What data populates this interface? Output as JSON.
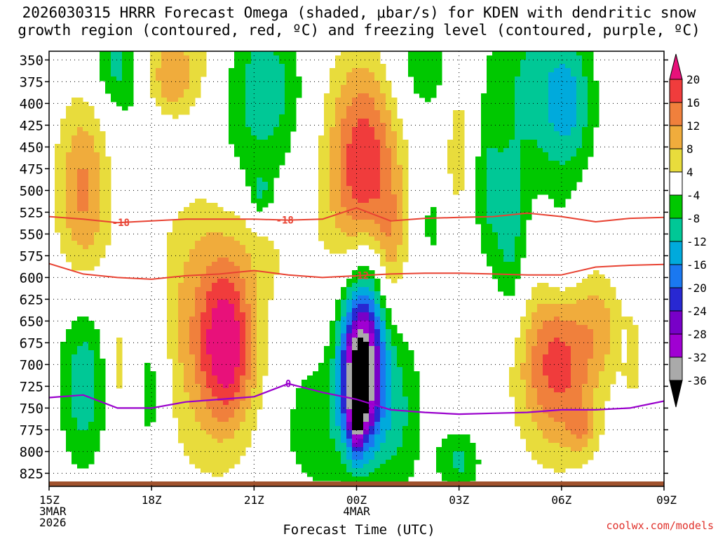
{
  "title": "2026030315 HRRR Forecast Omega (shaded, μbar/s) for KDEN with dendritic snow\ngrowth region (contoured, red, ºC) and freezing level (contoured, purple, ºC)",
  "credit": "coolwx.com/models",
  "chart_data": {
    "type": "heatmap",
    "title": "2026030315 HRRR Forecast Omega (shaded, μbar/s) for KDEN with dendritic snow growth region (contoured, red, ºC) and freezing level (contoured, purple, ºC)",
    "xlabel": "Forecast Time (UTC)",
    "ylabel": "Pressure (hPa)",
    "xlim": [
      0,
      18
    ],
    "ylim": [
      840,
      340
    ],
    "grid": true,
    "x_ticks": [
      {
        "x": 0,
        "lines": [
          "15Z",
          "3MAR",
          "2026"
        ]
      },
      {
        "x": 3,
        "lines": [
          "18Z"
        ]
      },
      {
        "x": 6,
        "lines": [
          "21Z"
        ]
      },
      {
        "x": 9,
        "lines": [
          "00Z",
          "4MAR"
        ]
      },
      {
        "x": 12,
        "lines": [
          "03Z"
        ]
      },
      {
        "x": 15,
        "lines": [
          "06Z"
        ]
      },
      {
        "x": 18,
        "lines": [
          "09Z"
        ]
      }
    ],
    "y_ticks": [
      350,
      375,
      400,
      425,
      450,
      475,
      500,
      525,
      550,
      575,
      600,
      625,
      650,
      675,
      700,
      725,
      750,
      775,
      800,
      825
    ],
    "colorbar": {
      "labels": [
        "20",
        "16",
        "12",
        "8",
        "4",
        "-4",
        "-8",
        "-12",
        "-16",
        "-20",
        "-24",
        "-28",
        "-32",
        "-36"
      ],
      "colors": [
        "#e8117a",
        "#f03c3c",
        "#f0803c",
        "#f0ac3c",
        "#e8dc3c",
        "#ffffff",
        "#00c800",
        "#00c896",
        "#00aadc",
        "#1a78f0",
        "#2828d2",
        "#7800c8",
        "#a000d2",
        "#aaaaaa",
        "#000000"
      ]
    },
    "omega_blobs": [
      {
        "x": 1.0,
        "p": 500,
        "sx": 0.55,
        "sp": 75,
        "v": 13
      },
      {
        "x": 2.0,
        "p": 355,
        "sx": 0.5,
        "sp": 35,
        "v": -10
      },
      {
        "x": 3.6,
        "p": 355,
        "sx": 0.9,
        "sp": 40,
        "v": 10
      },
      {
        "x": 3.5,
        "p": 390,
        "sx": 0.5,
        "sp": 30,
        "v": 7
      },
      {
        "x": 3.1,
        "p": 410,
        "sx": 0.8,
        "sp": 60,
        "v": -6
      },
      {
        "x": 6.0,
        "p": 420,
        "sx": 0.9,
        "sp": 110,
        "v": -8
      },
      {
        "x": 6.2,
        "p": 505,
        "sx": 0.25,
        "sp": 20,
        "v": -7
      },
      {
        "x": 6.5,
        "p": 380,
        "sx": 0.6,
        "sp": 40,
        "v": -5
      },
      {
        "x": 9.2,
        "p": 475,
        "sx": 0.75,
        "sp": 90,
        "v": 20
      },
      {
        "x": 9.3,
        "p": 640,
        "sx": 0.55,
        "sp": 65,
        "v": -16
      },
      {
        "x": 9.1,
        "p": 720,
        "sx": 0.4,
        "sp": 55,
        "v": -34
      },
      {
        "x": 9.0,
        "p": 760,
        "sx": 0.15,
        "sp": 30,
        "v": -14
      },
      {
        "x": 7.8,
        "p": 770,
        "sx": 0.8,
        "sp": 60,
        "v": -7
      },
      {
        "x": 10.1,
        "p": 760,
        "sx": 0.6,
        "sp": 70,
        "v": -9
      },
      {
        "x": 10.0,
        "p": 580,
        "sx": 0.3,
        "sp": 60,
        "v": 8
      },
      {
        "x": 12.0,
        "p": 430,
        "sx": 0.35,
        "sp": 80,
        "v": 7
      },
      {
        "x": 11.0,
        "p": 355,
        "sx": 0.8,
        "sp": 50,
        "v": -7
      },
      {
        "x": 12.8,
        "p": 500,
        "sx": 0.3,
        "sp": 60,
        "v": -7
      },
      {
        "x": 11.2,
        "p": 540,
        "sx": 0.2,
        "sp": 30,
        "v": -6
      },
      {
        "x": 12.0,
        "p": 810,
        "sx": 0.45,
        "sp": 25,
        "v": -9
      },
      {
        "x": 14.0,
        "p": 380,
        "sx": 0.9,
        "sp": 90,
        "v": -8
      },
      {
        "x": 13.5,
        "p": 560,
        "sx": 0.35,
        "sp": 70,
        "v": -9
      },
      {
        "x": 15.2,
        "p": 400,
        "sx": 0.55,
        "sp": 60,
        "v": -11
      },
      {
        "x": 15.0,
        "p": 580,
        "sx": 0.4,
        "sp": 40,
        "v": -6
      },
      {
        "x": 14.9,
        "p": 700,
        "sx": 0.85,
        "sp": 70,
        "v": 18
      },
      {
        "x": 16.2,
        "p": 650,
        "sx": 0.4,
        "sp": 40,
        "v": 6
      },
      {
        "x": 17.1,
        "p": 690,
        "sx": 0.22,
        "sp": 35,
        "v": 6
      },
      {
        "x": 15.6,
        "p": 775,
        "sx": 0.3,
        "sp": 20,
        "v": 6
      },
      {
        "x": 16.8,
        "p": 680,
        "sx": 0.05,
        "sp": 10,
        "v": -6
      },
      {
        "x": 4.6,
        "p": 650,
        "sx": 1.2,
        "sp": 120,
        "v": 10
      },
      {
        "x": 5.2,
        "p": 680,
        "sx": 0.55,
        "sp": 60,
        "v": 17
      },
      {
        "x": 1.0,
        "p": 720,
        "sx": 0.5,
        "sp": 70,
        "v": -11
      },
      {
        "x": 2.0,
        "p": 700,
        "sx": 0.22,
        "sp": 35,
        "v": 6
      },
      {
        "x": 3.0,
        "p": 720,
        "sx": 0.35,
        "sp": 80,
        "v": -8
      },
      {
        "x": 6.3,
        "p": 560,
        "sx": 1.0,
        "sp": 45,
        "v": 5
      }
    ],
    "dgz_contours": [
      {
        "label": "-18",
        "x": [
          0,
          1,
          2,
          3,
          4,
          5,
          6,
          7,
          8,
          9,
          10,
          11,
          12,
          13,
          14,
          15,
          16,
          17,
          18
        ],
        "p": [
          530,
          533,
          537,
          535,
          533,
          533,
          533,
          534,
          533,
          520,
          535,
          532,
          531,
          530,
          526,
          530,
          536,
          532,
          531
        ],
        "label_at": [
          2.1,
          6.9
        ]
      },
      {
        "label": "-12",
        "x": [
          0,
          1,
          2,
          3,
          4,
          5,
          6,
          7,
          8,
          9,
          10,
          11,
          12,
          13,
          14,
          15,
          16,
          17,
          18
        ],
        "p": [
          584,
          596,
          600,
          602,
          598,
          596,
          592,
          597,
          600,
          598,
          596,
          595,
          595,
          596,
          597,
          597,
          588,
          586,
          585
        ],
        "label_at": [
          9.1
        ]
      }
    ],
    "freezing_level": {
      "label": "0",
      "x": [
        0,
        1,
        2,
        3,
        4,
        5,
        6,
        7,
        8,
        9,
        10,
        11,
        12,
        13,
        14,
        15,
        16,
        17,
        18
      ],
      "p": [
        738,
        735,
        750,
        750,
        743,
        740,
        737,
        722,
        732,
        740,
        752,
        755,
        757,
        756,
        755,
        752,
        752,
        750,
        742
      ],
      "label_at": [
        7.0
      ]
    }
  }
}
